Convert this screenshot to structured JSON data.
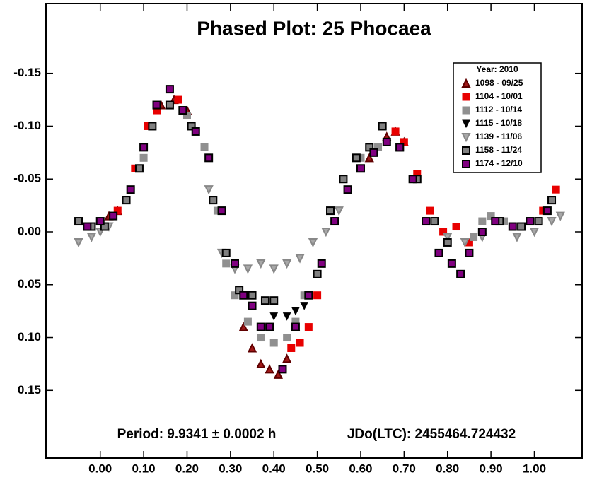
{
  "chart_data": {
    "type": "scatter",
    "title": "Phased Plot: 25 Phocaea",
    "annotations": [
      "Period: 9.9341 ± 0.0002 h",
      "JDo(LTC): 2455464.724432"
    ],
    "legend_title": "Year: 2010",
    "legend": "upper right",
    "grid": false,
    "xlim": [
      -0.125,
      1.11
    ],
    "ylim": [
      0.214,
      -0.216
    ],
    "xticks": [
      {
        "value": 0,
        "label": "0.00"
      },
      {
        "value": 0.1,
        "label": "0.10"
      },
      {
        "value": 0.2,
        "label": "0.20"
      },
      {
        "value": 0.3,
        "label": "0.30"
      },
      {
        "value": 0.4,
        "label": "0.40"
      },
      {
        "value": 0.5,
        "label": "0.50"
      },
      {
        "value": 0.6,
        "label": "0.60"
      },
      {
        "value": 0.7,
        "label": "0.70"
      },
      {
        "value": 0.8,
        "label": "0.80"
      },
      {
        "value": 0.9,
        "label": "0.90"
      },
      {
        "value": 1,
        "label": "1.00"
      }
    ],
    "yticks": [
      -0.15,
      {
        "value": -0.1,
        "label": "-0.10"
      },
      -0.05,
      {
        "value": 0,
        "label": "0.00"
      },
      0.05,
      {
        "value": 0.1,
        "label": "0.10"
      },
      0.15
    ],
    "series": [
      {
        "name": "1098 - 09/25",
        "marker": "triangle-up",
        "color": "#a01818",
        "edgecolor": "#600000",
        "x": [
          0.02,
          0.04,
          0.14,
          0.17,
          0.2,
          0.33,
          0.35,
          0.37,
          0.39,
          0.41,
          0.43,
          0.45,
          0.62,
          0.66,
          0.68,
          0.7
        ],
        "values": [
          -0.015,
          -0.02,
          -0.12,
          -0.125,
          -0.115,
          0.09,
          0.11,
          0.125,
          0.13,
          0.135,
          0.12,
          0.09,
          -0.07,
          -0.09,
          -0.095,
          -0.085
        ]
      },
      {
        "name": "1104 - 10/01",
        "marker": "square",
        "color": "#e80000",
        "edgecolor": "#e80000",
        "x": [
          0.04,
          0.08,
          0.11,
          0.13,
          0.18,
          0.44,
          0.46,
          0.48,
          0.5,
          0.68,
          0.7,
          0.73,
          0.76,
          0.79,
          0.82,
          0.85,
          1.02,
          1.05
        ],
        "values": [
          -0.02,
          -0.06,
          -0.1,
          -0.115,
          -0.125,
          0.11,
          0.105,
          0.09,
          0.06,
          -0.095,
          -0.085,
          -0.055,
          -0.02,
          0,
          -0.005,
          0.01,
          -0.02,
          -0.04
        ]
      },
      {
        "name": "1112 - 10/14",
        "marker": "square",
        "color": "#909090",
        "edgecolor": "#909090",
        "x": [
          0.1,
          0.2,
          0.24,
          0.27,
          0.29,
          0.31,
          0.34,
          0.37,
          0.4,
          0.43,
          0.45,
          0.47,
          0.6,
          0.64,
          0.86,
          0.88,
          0.9,
          0.93
        ],
        "values": [
          -0.07,
          -0.11,
          -0.08,
          -0.02,
          0.03,
          0.06,
          0.085,
          0.1,
          0.105,
          0.1,
          0.085,
          0.06,
          -0.07,
          -0.08,
          0.005,
          -0.01,
          -0.015,
          -0.01
        ]
      },
      {
        "name": "1115 - 10/18",
        "marker": "triangle-down",
        "color": "#000000",
        "edgecolor": "#000000",
        "x": [
          0.4,
          0.43,
          0.45,
          0.47
        ],
        "values": [
          0.08,
          0.08,
          0.075,
          0.07
        ]
      },
      {
        "name": "1139 - 11/06",
        "marker": "triangle-down",
        "color": "#a8a8a8",
        "edgecolor": "#888888",
        "x": [
          -0.05,
          -0.02,
          0,
          0.02,
          0.25,
          0.28,
          0.31,
          0.34,
          0.37,
          0.4,
          0.43,
          0.46,
          0.49,
          0.52,
          0.55,
          0.8,
          0.84,
          0.88,
          0.96,
          1,
          1.04,
          1.06
        ],
        "values": [
          0.01,
          0.005,
          0,
          -0.005,
          -0.04,
          0.02,
          0.035,
          0.035,
          0.03,
          0.035,
          0.03,
          0.025,
          0.01,
          0,
          -0.02,
          0.005,
          0.01,
          0.005,
          0.005,
          0,
          -0.01,
          -0.015
        ]
      },
      {
        "name": "1158 - 11/24",
        "marker": "square",
        "color": "#808080",
        "edgecolor": "#000000",
        "x": [
          -0.05,
          -0.02,
          0.01,
          0.06,
          0.09,
          0.12,
          0.16,
          0.21,
          0.26,
          0.29,
          0.32,
          0.35,
          0.38,
          0.4,
          0.5,
          0.53,
          0.56,
          0.59,
          0.62,
          0.65,
          0.69,
          0.73,
          0.77,
          0.8,
          0.92,
          0.97,
          1.01,
          1.04
        ],
        "values": [
          -0.01,
          -0.005,
          -0.005,
          -0.03,
          -0.06,
          -0.1,
          -0.12,
          -0.1,
          -0.03,
          0.02,
          0.055,
          0.06,
          0.065,
          0.065,
          0.04,
          -0.02,
          -0.05,
          -0.07,
          -0.08,
          -0.1,
          -0.08,
          -0.05,
          -0.01,
          0.01,
          -0.01,
          -0.005,
          -0.01,
          -0.03
        ]
      },
      {
        "name": "1174 - 12/10",
        "marker": "square",
        "color": "#800080",
        "edgecolor": "#000000",
        "x": [
          -0.03,
          0,
          0.03,
          0.07,
          0.1,
          0.13,
          0.16,
          0.19,
          0.22,
          0.25,
          0.28,
          0.31,
          0.33,
          0.35,
          0.37,
          0.39,
          0.42,
          0.45,
          0.48,
          0.51,
          0.54,
          0.57,
          0.6,
          0.63,
          0.66,
          0.69,
          0.72,
          0.75,
          0.78,
          0.81,
          0.83,
          0.85,
          0.88,
          0.91,
          0.95,
          0.99,
          1.03
        ],
        "values": [
          -0.005,
          -0.01,
          -0.015,
          -0.04,
          -0.08,
          -0.12,
          -0.135,
          -0.115,
          -0.095,
          -0.07,
          -0.02,
          0.03,
          0.06,
          0.07,
          0.09,
          0.09,
          0.13,
          0.09,
          0.06,
          0.03,
          -0.01,
          -0.04,
          -0.06,
          -0.075,
          -0.085,
          -0.08,
          -0.05,
          -0.01,
          0.02,
          0.03,
          0.04,
          0.02,
          0,
          -0.01,
          -0.005,
          -0.01,
          -0.02
        ]
      }
    ]
  }
}
